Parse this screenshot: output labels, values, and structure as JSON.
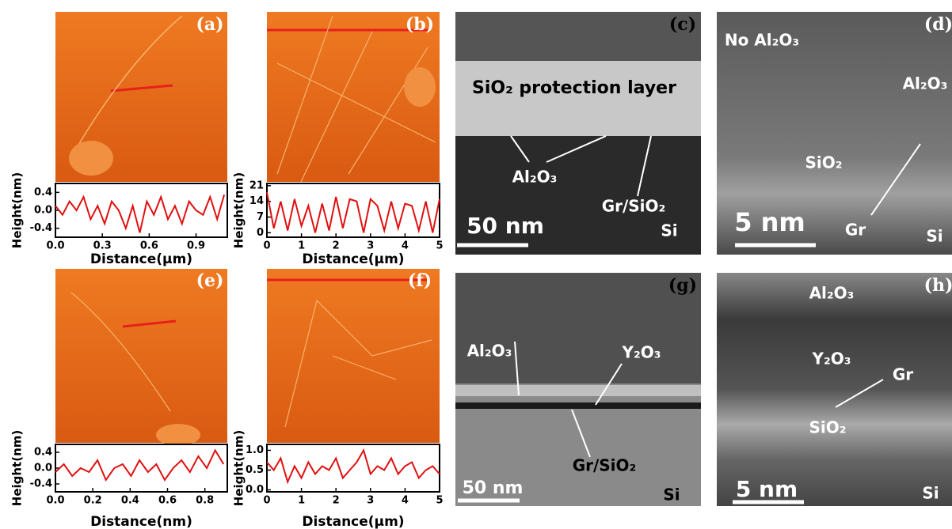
{
  "chart_data": [
    {
      "type": "line",
      "ylabel": "Height(nm)",
      "xlabel": "Distance(μm)",
      "xlim": [
        0,
        1.1
      ],
      "ylim": [
        -0.6,
        0.6
      ],
      "xticks": [
        {
          "value": 0,
          "label": "0.0"
        },
        0.3,
        0.6,
        0.9
      ],
      "yticks": [
        -0.4,
        {
          "value": 0,
          "label": "0.0"
        },
        0.4
      ],
      "x": [
        0,
        0.045,
        0.09,
        0.135,
        0.18,
        0.225,
        0.27,
        0.315,
        0.36,
        0.405,
        0.45,
        0.495,
        0.54,
        0.585,
        0.63,
        0.675,
        0.72,
        0.765,
        0.81,
        0.855,
        0.9,
        0.945,
        0.99,
        1.035,
        1.08
      ],
      "series": [
        {
          "color": "#e01010",
          "values": [
            0.1,
            -0.1,
            0.2,
            0.0,
            0.3,
            -0.2,
            0.1,
            -0.3,
            0.2,
            0.0,
            -0.4,
            0.1,
            -0.5,
            0.2,
            -0.1,
            0.3,
            -0.2,
            0.1,
            -0.3,
            0.2,
            0.0,
            -0.1,
            0.3,
            -0.2,
            0.35
          ]
        }
      ]
    },
    {
      "type": "line",
      "ylabel": "Height(nm)",
      "xlabel": "Distance(μm)",
      "xlim": [
        0,
        5
      ],
      "ylim": [
        -2,
        22
      ],
      "xticks": [
        0,
        1,
        2,
        3,
        4,
        5
      ],
      "yticks": [
        0,
        7,
        14,
        21
      ],
      "x": [
        0,
        0.2,
        0.4,
        0.6,
        0.8,
        1,
        1.2,
        1.4,
        1.6,
        1.8,
        2,
        2.2,
        2.4,
        2.6,
        2.8,
        3,
        3.2,
        3.4,
        3.6,
        3.8,
        4,
        4.2,
        4.4,
        4.6,
        4.8,
        5
      ],
      "series": [
        {
          "color": "#e01010",
          "values": [
            18,
            2,
            14,
            1,
            15,
            3,
            12,
            0,
            13,
            1,
            16,
            2,
            15,
            14,
            0,
            15,
            12,
            1,
            14,
            2,
            13,
            12,
            1,
            14,
            0,
            15
          ]
        }
      ]
    },
    {
      "type": "line",
      "ylabel": "Height(nm)",
      "xlabel": "Distance(nm)",
      "xlim": [
        0,
        0.92
      ],
      "ylim": [
        -0.6,
        0.6
      ],
      "xticks": [
        {
          "value": 0,
          "label": "0.0"
        },
        0.2,
        0.4,
        0.6,
        0.8
      ],
      "yticks": [
        -0.4,
        {
          "value": 0,
          "label": "0.0"
        },
        0.4
      ],
      "x": [
        0,
        0.045,
        0.09,
        0.135,
        0.18,
        0.225,
        0.27,
        0.315,
        0.36,
        0.405,
        0.45,
        0.495,
        0.54,
        0.585,
        0.63,
        0.675,
        0.72,
        0.765,
        0.81,
        0.855,
        0.9
      ],
      "series": [
        {
          "color": "#e01010",
          "values": [
            -0.1,
            0.1,
            -0.2,
            0.0,
            -0.1,
            0.2,
            -0.3,
            0.0,
            0.1,
            -0.2,
            0.2,
            -0.1,
            0.1,
            -0.3,
            0.0,
            0.2,
            -0.1,
            0.3,
            0.0,
            0.45,
            0.1
          ]
        }
      ]
    },
    {
      "type": "line",
      "ylabel": "Height(nm)",
      "xlabel": "Distance(μm)",
      "xlim": [
        0,
        5
      ],
      "ylim": [
        -0.05,
        1.15
      ],
      "xticks": [
        0,
        1,
        2,
        3,
        4,
        5
      ],
      "yticks": [
        {
          "value": 0,
          "label": "0.0"
        },
        0.5,
        {
          "value": 1,
          "label": "1.0"
        }
      ],
      "x": [
        0,
        0.2,
        0.4,
        0.6,
        0.8,
        1,
        1.2,
        1.4,
        1.6,
        1.8,
        2,
        2.2,
        2.4,
        2.6,
        2.8,
        3,
        3.2,
        3.4,
        3.6,
        3.8,
        4,
        4.2,
        4.4,
        4.6,
        4.8,
        5
      ],
      "series": [
        {
          "color": "#e01010",
          "values": [
            0.7,
            0.5,
            0.8,
            0.2,
            0.6,
            0.3,
            0.7,
            0.4,
            0.6,
            0.5,
            0.8,
            0.3,
            0.5,
            0.7,
            1.0,
            0.4,
            0.6,
            0.5,
            0.8,
            0.4,
            0.6,
            0.7,
            0.3,
            0.5,
            0.6,
            0.4
          ]
        }
      ]
    }
  ],
  "panels": [
    {
      "label": "(a)"
    },
    {
      "label": "(b)"
    },
    {
      "label": "(c)",
      "texts": [
        "SiO₂ protection layer",
        "Al₂O₃",
        "Gr/SiO₂",
        "50 nm",
        "Si"
      ]
    },
    {
      "label": "(d)",
      "texts": [
        "No Al₂O₃",
        "Al₂O₃",
        "SiO₂",
        "5 nm",
        "Gr",
        "Si"
      ]
    },
    {
      "label": "(e)"
    },
    {
      "label": "(f)"
    },
    {
      "label": "(g)",
      "texts": [
        "Al₂O₃",
        "Y₂O₃",
        "Gr/SiO₂",
        "50 nm",
        "Si"
      ]
    },
    {
      "label": "(h)",
      "texts": [
        "Al₂O₃",
        "Y₂O₃",
        "Gr",
        "SiO₂",
        "5 nm",
        "Si"
      ]
    }
  ]
}
